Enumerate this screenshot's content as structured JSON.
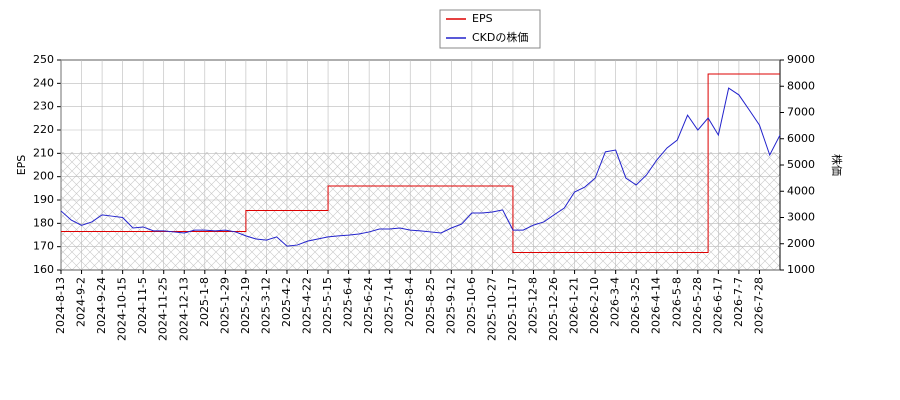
{
  "chart_data": {
    "type": "line",
    "y_label": "EPS",
    "y2_label": "株価",
    "categories": [
      "2024-8-13",
      null,
      "2024-9-2",
      null,
      "2024-9-24",
      null,
      "2024-10-15",
      null,
      "2024-11-5",
      null,
      "2024-11-25",
      null,
      "2024-12-13",
      null,
      "2025-1-8",
      null,
      "2025-1-29",
      null,
      "2025-2-19",
      null,
      "2025-3-12",
      null,
      "2025-4-2",
      null,
      "2025-4-22",
      null,
      "2025-5-15",
      null,
      "2025-6-4",
      null,
      "2025-6-24",
      null,
      "2025-7-14",
      null,
      "2025-8-4",
      null,
      "2025-8-25",
      null,
      "2025-9-12",
      null,
      "2025-10-6",
      null,
      "2025-10-27",
      null,
      "2025-11-17",
      null,
      "2025-12-8",
      null,
      "2025-12-26",
      null,
      "2026-1-21",
      null,
      "2026-2-10",
      null,
      "2026-3-4",
      null,
      "2026-3-25",
      null,
      "2026-4-14",
      null,
      "2026-5-8",
      null,
      "2026-5-28",
      null,
      "2026-6-17",
      null,
      "2026-7-7",
      null,
      "2026-7-28",
      null,
      null
    ],
    "series": [
      {
        "name": "EPS",
        "color": "#dd0000",
        "step": true,
        "values": [
          176.5,
          176.5,
          176.5,
          176.5,
          176.5,
          176.5,
          176.5,
          176.5,
          176.5,
          176.5,
          176.5,
          176.5,
          176.5,
          176.5,
          176.5,
          176.5,
          176.5,
          176.5,
          185.5,
          185.5,
          185.5,
          185.5,
          185.5,
          185.5,
          185.5,
          185.5,
          196,
          196,
          196,
          196,
          196,
          196,
          196,
          196,
          196,
          196,
          196,
          196,
          196,
          196,
          196,
          196,
          196,
          196,
          167.5,
          167.5,
          167.5,
          167.5,
          167.5,
          167.5,
          167.5,
          167.5,
          167.5,
          167.5,
          167.5,
          167.5,
          167.5,
          167.5,
          167.5,
          167.5,
          167.5,
          167.5,
          167.5,
          244,
          244,
          244,
          244,
          244,
          244,
          244,
          244
        ]
      },
      {
        "name": "CKDの株価",
        "color": "#2222cc",
        "axis": "y2",
        "values": [
          3250,
          2900,
          2700,
          2830,
          3100,
          3050,
          3000,
          2600,
          2640,
          2490,
          2490,
          2450,
          2410,
          2520,
          2520,
          2490,
          2520,
          2450,
          2300,
          2180,
          2140,
          2260,
          1910,
          1950,
          2100,
          2180,
          2260,
          2300,
          2330,
          2370,
          2450,
          2560,
          2560,
          2600,
          2520,
          2490,
          2450,
          2410,
          2600,
          2750,
          3170,
          3170,
          3210,
          3290,
          2520,
          2520,
          2710,
          2830,
          3100,
          3360,
          3970,
          4160,
          4500,
          5500,
          5570,
          4500,
          4240,
          4620,
          5190,
          5650,
          5950,
          6900,
          6330,
          6790,
          6140,
          7930,
          7670,
          7100,
          6520,
          5380,
          6140
        ]
      }
    ],
    "ylim": [
      160,
      250
    ],
    "yticks": [
      160,
      170,
      180,
      190,
      200,
      210,
      220,
      230,
      240,
      250
    ],
    "y2lim": [
      1000,
      9000
    ],
    "y2ticks": [
      1000,
      2000,
      3000,
      4000,
      5000,
      6000,
      7000,
      8000,
      9000
    ],
    "grid": true
  }
}
